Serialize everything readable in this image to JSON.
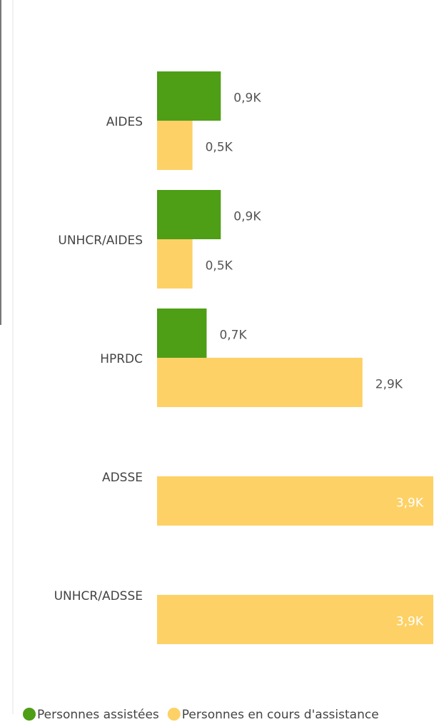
{
  "chart_data": {
    "type": "bar",
    "orientation": "horizontal",
    "categories": [
      "AIDES",
      "UNHCR/AIDES",
      "HPRDC",
      "ADSSE",
      "UNHCR/ADSSE"
    ],
    "series": [
      {
        "name": "Personnes assistées",
        "color": "#4e9e16",
        "values": [
          0.9,
          0.9,
          0.7,
          null,
          null
        ],
        "value_labels": [
          "0,9K",
          "0,9K",
          "0,7K",
          null,
          null
        ]
      },
      {
        "name": "Personnes en cours d'assistance",
        "color": "#fdd166",
        "values": [
          0.5,
          0.5,
          2.9,
          3.9,
          3.9
        ],
        "value_labels": [
          "0,5K",
          "0,5K",
          "2,9K",
          "3,9K",
          "3,9K"
        ]
      }
    ],
    "legend": "bottom"
  }
}
